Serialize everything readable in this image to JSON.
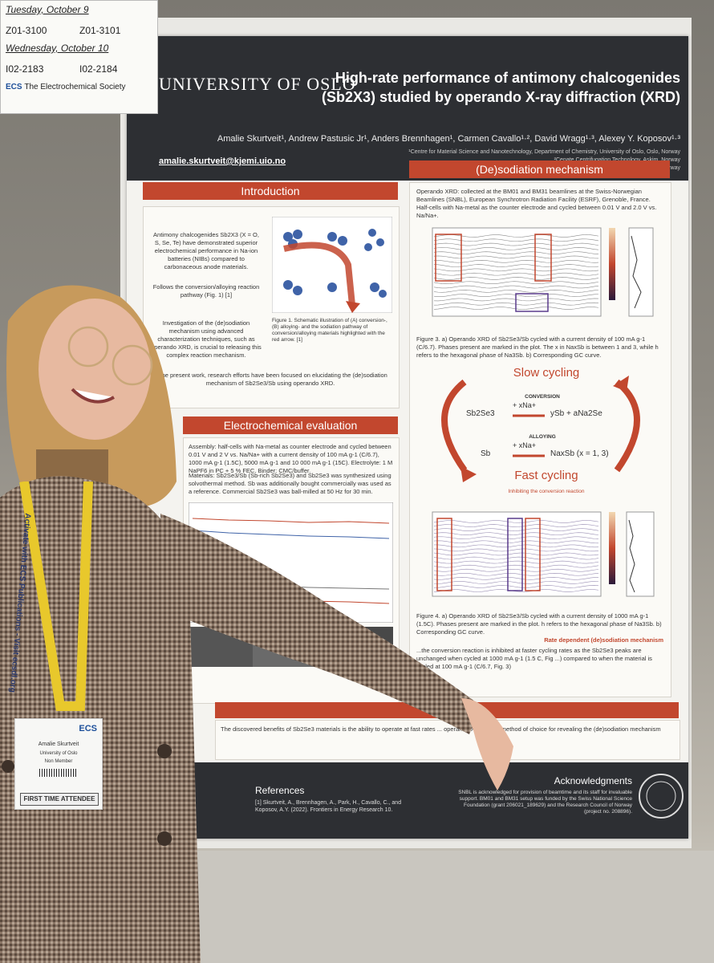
{
  "note_card": {
    "day1": "Tuesday, October 9",
    "day1_rooms": [
      "Z01-3100",
      "Z01-3101"
    ],
    "day2": "Wednesday, October 10",
    "day2_rooms": [
      "I02-2183",
      "I02-2184"
    ],
    "society": "The Electrochemical Society"
  },
  "poster": {
    "university": "UNIVERSITY OF OSLO",
    "title_line1": "High-rate performance of antimony chalcogenides",
    "title_line2": "(Sb2X3) studied by operando X-ray diffraction (XRD)",
    "authors": "Amalie Skurtveit¹, Andrew Pastusic Jr¹, Anders Brennhagen¹, Carmen Cavallo¹·², David Wragg¹·³, Alexey Y. Koposov¹·³",
    "affiliation1": "¹Centre for Material Science and Nanotechnology, Department of Chemistry, University of Oslo, Oslo, Norway",
    "affiliation2": "²Cenate Centrifugation Technology, Askim, Norway",
    "affiliation3": "³Department of Battery Technology, Institute for Energy Technology (IFE), Kjeller, Norway",
    "email": "amalie.skurtveit@kjemi.uio.no",
    "sections": {
      "introduction": "Introduction",
      "desodiation": "(De)sodiation mechanism",
      "electrochemical": "Electrochemical evaluation"
    },
    "intro_text1": "Antimony chalcogenides Sb2X3 (X = O, S, Se, Te) have demonstrated superior electrochemical performance in Na-ion batteries (NIBs) compared to carbonaceous anode materials.",
    "intro_text2": "Follows the conversion/alloying reaction pathway (Fig. 1) [1]",
    "intro_text3": "Investigation of the (de)sodiation mechanism using advanced characterization techniques, such as operando XRD, is crucial to releasing this complex reaction mechanism.",
    "intro_text4": "In the present work, research efforts have been focused on elucidating the (de)sodiation mechanism of Sb2Se3/Sb using operando XRD.",
    "fig1_caption": "Figure 1. Schematic illustration of (A) conversion-, (B) alloying- and the sodiation pathway of conversion/alloying materials highlighted with the red arrow. [1]",
    "operando_text": "Operando XRD: collected at the BM01 and BM31 beamlines at the Swiss-Norwegian Beamlines (SNBL), European Synchrotron Radiation Facility (ESRF), Grenoble, France. Half-cells with Na-metal as the counter electrode and cycled between 0.01 V and 2.0 V vs. Na/Na+.",
    "fig3_caption": "Figure 3. a) Operando XRD of Sb2Se3/Sb cycled with a current density of 100 mA g-1 (C/6.7). Phases present are marked in the plot. The x in NaxSb is between 1 and 3, while h refers to the hexagonal phase of Na3Sb. b) Corresponding GC curve.",
    "slow_cycling": "Slow cycling",
    "fast_cycling": "Fast cycling",
    "inhibiting": "Inhibiting the conversion reaction",
    "conversion": "CONVERSION",
    "alloying": "ALLOYING",
    "reaction1_left": "Sb2Se3",
    "reaction1_arrow": "+ xNa+",
    "reaction1_right": "ySb + aNa2Se",
    "reaction2_left": "Sb",
    "reaction2_arrow": "+ xNa+",
    "reaction2_right": "NaxSb (x = 1, 3)",
    "fig4_caption": "Figure 4. a) Operando XRD of Sb2Se3/Sb cycled with a current density of 1000 mA g-1 (1.5C). Phases present are marked in the plot. h refers to the hexagonal phase of Na3Sb. b) Corresponding GC curve.",
    "rate_title": "Rate dependent (de)sodiation mechanism",
    "rate_text": "...the conversion reaction is inhibited at faster cycling rates as the Sb2Se3 peaks are unchanged when cycled at 1000 mA g-1 (1.5 C, Fig ...) compared to when the material is cycled at 100 mA g-1 (C/6.7, Fig. 3)",
    "echem_text1": "Assembly: half-cells with Na-metal as counter electrode and cycled between 0.01 V and 2 V vs. Na/Na+ with a current density of 100 mA g-1 (C/6.7), 1000 mA g-1 (1.5C), 5000 mA g-1 and 10 000 mA g-1 (15C). Electrolyte: 1 M NaPF6 in PC + 5 % FEC. Binder: CMC/buffer.",
    "echem_text2": "Materials: Sb2Se3/Sb (Sb-rich Sb2Se3) and Sb2Se3 was synthesized using solvothermal method. Sb was additionally bought commercially was used as a reference. Commercial Sb2Se3 was ball-milled at 50 Hz for 30 min.",
    "conclusion_text": "The discovered benefits of Sb2Se3 materials is the ability to operate at fast rates ... operando XRD is the method of choice for revealing the (de)sodiation mechanism",
    "references_title": "References",
    "reference1": "[1] Skurtveit, A., Brennhagen, A., Park, H., Cavallo, C., and Koposov, A.Y. (2022). Frontiers in Energy Research 10.",
    "ack_title": "Acknowledgments",
    "ack_text": "SNBL is acknowledged for provision of beamtime and its staff for invaluable support. BM01 and BM31 setup was funded by the Swiss National Science Foundation (grant 206021_189629) and the Research Council of Norway (project no. 208896)."
  },
  "badge": {
    "name": "Amalie Skurtveit",
    "org": "University of Oslo",
    "type": "Non Member",
    "status": "FIRST TIME ATTENDEE",
    "logo": "ECS"
  },
  "lanyard_text": "Activate with ECS Publications - Visit ecsdl.org",
  "colors": {
    "accent": "#c2472e",
    "header": "#2d2f33"
  }
}
